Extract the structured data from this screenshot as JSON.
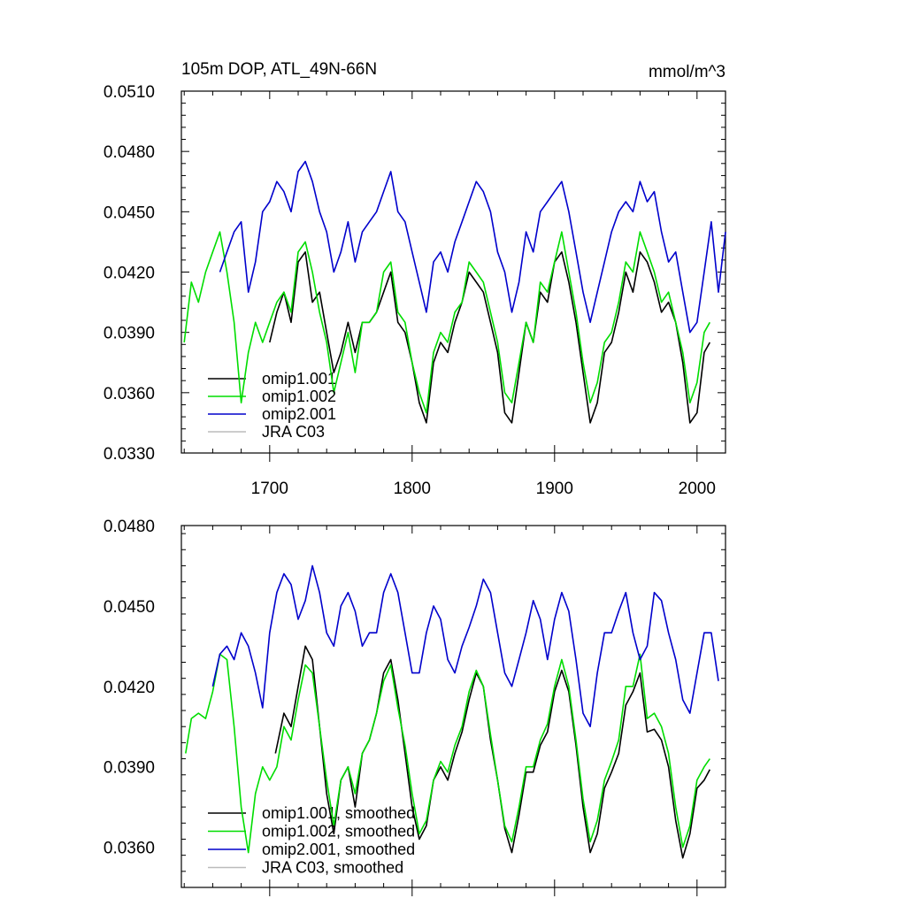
{
  "chart_data": [
    {
      "type": "line",
      "panel": "top",
      "title": "105m DOP, ATL_49N-66N",
      "units": "mmol/m^3",
      "xlim": [
        1638,
        2020
      ],
      "ylim": [
        0.033,
        0.051
      ],
      "xticks": [
        1700,
        1800,
        1900,
        2000
      ],
      "yticks": [
        "0.0330",
        "0.0360",
        "0.0390",
        "0.0420",
        "0.0450",
        "0.0480",
        "0.0510"
      ],
      "legend_position": "bottom-left",
      "colors": {
        "omip1.001": "#000000",
        "omip1.002": "#00dd00",
        "omip2.001": "#0000cc",
        "JRA C03": "#bbbbbb"
      },
      "series": [
        {
          "name": "omip1.001",
          "x": [
            1700,
            1705,
            1710,
            1715,
            1720,
            1725,
            1730,
            1735,
            1740,
            1745,
            1750,
            1755,
            1760,
            1765,
            1770,
            1775,
            1780,
            1785,
            1790,
            1795,
            1800,
            1805,
            1810,
            1815,
            1820,
            1825,
            1830,
            1835,
            1840,
            1845,
            1850,
            1855,
            1860,
            1865,
            1870,
            1875,
            1880,
            1885,
            1890,
            1895,
            1900,
            1905,
            1910,
            1915,
            1920,
            1925,
            1930,
            1935,
            1940,
            1945,
            1950,
            1955,
            1960,
            1965,
            1970,
            1975,
            1980,
            1985,
            1990,
            1995,
            2000,
            2005,
            2009
          ],
          "y": [
            0.0385,
            0.04,
            0.041,
            0.0395,
            0.0425,
            0.043,
            0.0405,
            0.041,
            0.039,
            0.037,
            0.038,
            0.0395,
            0.038,
            0.0395,
            0.0395,
            0.04,
            0.041,
            0.042,
            0.0395,
            0.039,
            0.0375,
            0.0355,
            0.0345,
            0.0375,
            0.0385,
            0.038,
            0.0395,
            0.0405,
            0.042,
            0.0415,
            0.041,
            0.0395,
            0.038,
            0.035,
            0.0345,
            0.037,
            0.0395,
            0.0385,
            0.041,
            0.0405,
            0.0425,
            0.043,
            0.0415,
            0.0395,
            0.037,
            0.0345,
            0.0355,
            0.038,
            0.0385,
            0.04,
            0.042,
            0.041,
            0.043,
            0.0425,
            0.0415,
            0.04,
            0.0405,
            0.0395,
            0.0375,
            0.0345,
            0.035,
            0.038,
            0.0385
          ]
        },
        {
          "name": "omip1.002",
          "x": [
            1640,
            1645,
            1650,
            1655,
            1660,
            1665,
            1670,
            1675,
            1680,
            1685,
            1690,
            1695,
            1700,
            1705,
            1710,
            1715,
            1720,
            1725,
            1730,
            1735,
            1740,
            1745,
            1750,
            1755,
            1760,
            1765,
            1770,
            1775,
            1780,
            1785,
            1790,
            1795,
            1800,
            1805,
            1810,
            1815,
            1820,
            1825,
            1830,
            1835,
            1840,
            1845,
            1850,
            1855,
            1860,
            1865,
            1870,
            1875,
            1880,
            1885,
            1890,
            1895,
            1900,
            1905,
            1910,
            1915,
            1920,
            1925,
            1930,
            1935,
            1940,
            1945,
            1950,
            1955,
            1960,
            1965,
            1970,
            1975,
            1980,
            1985,
            1990,
            1995,
            2000,
            2005,
            2009
          ],
          "y": [
            0.0385,
            0.0415,
            0.0405,
            0.042,
            0.043,
            0.044,
            0.042,
            0.0395,
            0.0355,
            0.038,
            0.0395,
            0.0385,
            0.0395,
            0.0405,
            0.041,
            0.04,
            0.043,
            0.0435,
            0.042,
            0.04,
            0.0385,
            0.036,
            0.0375,
            0.039,
            0.037,
            0.0395,
            0.0395,
            0.04,
            0.042,
            0.0425,
            0.04,
            0.0395,
            0.0375,
            0.036,
            0.035,
            0.038,
            0.039,
            0.0385,
            0.04,
            0.0405,
            0.0425,
            0.042,
            0.0415,
            0.04,
            0.0385,
            0.036,
            0.0355,
            0.0375,
            0.0395,
            0.0385,
            0.0415,
            0.041,
            0.0425,
            0.044,
            0.042,
            0.04,
            0.0375,
            0.0355,
            0.0365,
            0.0385,
            0.039,
            0.0405,
            0.0425,
            0.042,
            0.044,
            0.043,
            0.042,
            0.0405,
            0.041,
            0.0395,
            0.038,
            0.0355,
            0.0365,
            0.039,
            0.0395
          ]
        },
        {
          "name": "omip2.001",
          "x": [
            1665,
            1670,
            1675,
            1680,
            1685,
            1690,
            1695,
            1700,
            1705,
            1710,
            1715,
            1720,
            1725,
            1730,
            1735,
            1740,
            1745,
            1750,
            1755,
            1760,
            1765,
            1770,
            1775,
            1780,
            1785,
            1790,
            1795,
            1800,
            1805,
            1810,
            1815,
            1820,
            1825,
            1830,
            1835,
            1840,
            1845,
            1850,
            1855,
            1860,
            1865,
            1870,
            1875,
            1880,
            1885,
            1890,
            1895,
            1900,
            1905,
            1910,
            1915,
            1920,
            1925,
            1930,
            1935,
            1940,
            1945,
            1950,
            1955,
            1960,
            1965,
            1970,
            1975,
            1980,
            1985,
            1990,
            1995,
            2000,
            2005,
            2010,
            2015,
            2020
          ],
          "y": [
            0.042,
            0.043,
            0.044,
            0.0445,
            0.041,
            0.0425,
            0.045,
            0.0455,
            0.0465,
            0.046,
            0.045,
            0.047,
            0.0475,
            0.0465,
            0.045,
            0.044,
            0.042,
            0.043,
            0.0445,
            0.0425,
            0.044,
            0.0445,
            0.045,
            0.046,
            0.047,
            0.045,
            0.0445,
            0.043,
            0.0415,
            0.04,
            0.0425,
            0.043,
            0.042,
            0.0435,
            0.0445,
            0.0455,
            0.0465,
            0.046,
            0.045,
            0.043,
            0.042,
            0.04,
            0.0415,
            0.044,
            0.043,
            0.045,
            0.0455,
            0.046,
            0.0465,
            0.045,
            0.043,
            0.041,
            0.0395,
            0.041,
            0.0425,
            0.044,
            0.045,
            0.0455,
            0.045,
            0.0465,
            0.0455,
            0.046,
            0.044,
            0.0425,
            0.043,
            0.041,
            0.039,
            0.0395,
            0.042,
            0.0445,
            0.041,
            0.044
          ]
        },
        {
          "name": "JRA C03",
          "x": [],
          "y": []
        }
      ]
    },
    {
      "type": "line",
      "panel": "bottom",
      "title": "",
      "units": "",
      "xlim": [
        1638,
        2020
      ],
      "ylim": [
        0.0345,
        0.048
      ],
      "xticks": [
        1700,
        1800,
        1900,
        2000
      ],
      "yticks": [
        "0.0360",
        "0.0390",
        "0.0420",
        "0.0450",
        "0.0480"
      ],
      "legend_position": "bottom-left",
      "colors": {
        "omip1.001, smoothed": "#000000",
        "omip1.002, smoothed": "#00dd00",
        "omip2.001, smoothed": "#0000cc",
        "JRA C03, smoothed": "#bbbbbb"
      },
      "series": [
        {
          "name": "omip1.001, smoothed",
          "x": [
            1704,
            1710,
            1715,
            1720,
            1725,
            1730,
            1735,
            1740,
            1745,
            1750,
            1755,
            1760,
            1765,
            1770,
            1775,
            1780,
            1785,
            1790,
            1795,
            1800,
            1805,
            1810,
            1815,
            1820,
            1825,
            1830,
            1835,
            1840,
            1845,
            1850,
            1855,
            1860,
            1865,
            1870,
            1875,
            1880,
            1885,
            1890,
            1895,
            1900,
            1905,
            1910,
            1915,
            1920,
            1925,
            1930,
            1935,
            1940,
            1945,
            1950,
            1955,
            1960,
            1965,
            1970,
            1975,
            1980,
            1985,
            1990,
            1995,
            2000,
            2005,
            2009
          ],
          "y": [
            0.0395,
            0.041,
            0.0405,
            0.042,
            0.0435,
            0.043,
            0.0405,
            0.038,
            0.0365,
            0.0385,
            0.039,
            0.0375,
            0.0395,
            0.04,
            0.041,
            0.0425,
            0.043,
            0.0415,
            0.0395,
            0.0375,
            0.0363,
            0.0368,
            0.0385,
            0.039,
            0.0385,
            0.0395,
            0.0403,
            0.0415,
            0.0425,
            0.042,
            0.04,
            0.0385,
            0.0367,
            0.0358,
            0.0372,
            0.0388,
            0.0388,
            0.0398,
            0.0403,
            0.0418,
            0.0426,
            0.0418,
            0.0398,
            0.0375,
            0.0358,
            0.0365,
            0.0382,
            0.0388,
            0.0395,
            0.0413,
            0.0418,
            0.0425,
            0.0403,
            0.0404,
            0.04,
            0.039,
            0.037,
            0.0356,
            0.0365,
            0.0382,
            0.0385,
            0.0389
          ]
        },
        {
          "name": "omip1.002, smoothed",
          "x": [
            1641,
            1645,
            1650,
            1655,
            1660,
            1665,
            1670,
            1675,
            1680,
            1685,
            1690,
            1695,
            1700,
            1705,
            1710,
            1715,
            1720,
            1725,
            1730,
            1735,
            1740,
            1745,
            1750,
            1755,
            1760,
            1765,
            1770,
            1775,
            1780,
            1785,
            1790,
            1795,
            1800,
            1805,
            1810,
            1815,
            1820,
            1825,
            1830,
            1835,
            1840,
            1845,
            1850,
            1855,
            1860,
            1865,
            1870,
            1875,
            1880,
            1885,
            1890,
            1895,
            1900,
            1905,
            1910,
            1915,
            1920,
            1925,
            1930,
            1935,
            1940,
            1945,
            1950,
            1955,
            1960,
            1965,
            1970,
            1975,
            1980,
            1985,
            1990,
            1995,
            2000,
            2005,
            2009
          ],
          "y": [
            0.0395,
            0.0408,
            0.041,
            0.0408,
            0.0418,
            0.0432,
            0.043,
            0.0405,
            0.0375,
            0.0358,
            0.038,
            0.039,
            0.0385,
            0.039,
            0.0405,
            0.04,
            0.0415,
            0.0428,
            0.0425,
            0.0405,
            0.0385,
            0.0368,
            0.0385,
            0.039,
            0.038,
            0.0395,
            0.04,
            0.041,
            0.0422,
            0.0428,
            0.0412,
            0.0398,
            0.038,
            0.0365,
            0.037,
            0.0385,
            0.0392,
            0.0388,
            0.0398,
            0.0405,
            0.0418,
            0.0426,
            0.042,
            0.0402,
            0.0385,
            0.0368,
            0.0362,
            0.0375,
            0.039,
            0.039,
            0.04,
            0.0406,
            0.042,
            0.043,
            0.042,
            0.04,
            0.0378,
            0.0362,
            0.037,
            0.0385,
            0.0392,
            0.04,
            0.042,
            0.042,
            0.0432,
            0.0408,
            0.041,
            0.0405,
            0.0395,
            0.0375,
            0.036,
            0.0368,
            0.0385,
            0.039,
            0.0393
          ]
        },
        {
          "name": "omip2.001, smoothed",
          "x": [
            1660,
            1665,
            1670,
            1675,
            1680,
            1685,
            1690,
            1695,
            1700,
            1705,
            1710,
            1715,
            1720,
            1725,
            1730,
            1735,
            1740,
            1745,
            1750,
            1755,
            1760,
            1765,
            1770,
            1775,
            1780,
            1785,
            1790,
            1795,
            1800,
            1805,
            1810,
            1815,
            1820,
            1825,
            1830,
            1835,
            1840,
            1845,
            1850,
            1855,
            1860,
            1865,
            1870,
            1875,
            1880,
            1885,
            1890,
            1895,
            1900,
            1905,
            1910,
            1915,
            1920,
            1925,
            1930,
            1935,
            1940,
            1945,
            1950,
            1955,
            1960,
            1965,
            1970,
            1975,
            1980,
            1985,
            1990,
            1995,
            2000,
            2005,
            2010,
            2015
          ],
          "y": [
            0.042,
            0.0432,
            0.0435,
            0.043,
            0.044,
            0.0435,
            0.0425,
            0.0412,
            0.044,
            0.0455,
            0.0462,
            0.0458,
            0.0445,
            0.0452,
            0.0465,
            0.0455,
            0.044,
            0.0435,
            0.045,
            0.0455,
            0.0448,
            0.0435,
            0.044,
            0.044,
            0.0455,
            0.0462,
            0.0455,
            0.044,
            0.0425,
            0.0425,
            0.044,
            0.045,
            0.0445,
            0.043,
            0.0425,
            0.0435,
            0.0442,
            0.045,
            0.046,
            0.0455,
            0.044,
            0.0425,
            0.042,
            0.043,
            0.044,
            0.0452,
            0.0445,
            0.043,
            0.0445,
            0.0455,
            0.0448,
            0.043,
            0.041,
            0.0405,
            0.0425,
            0.044,
            0.044,
            0.0448,
            0.0455,
            0.044,
            0.043,
            0.0435,
            0.0455,
            0.0452,
            0.044,
            0.043,
            0.0415,
            0.041,
            0.0425,
            0.044,
            0.044,
            0.0422
          ]
        },
        {
          "name": "JRA C03, smoothed",
          "x": [],
          "y": []
        }
      ]
    }
  ]
}
